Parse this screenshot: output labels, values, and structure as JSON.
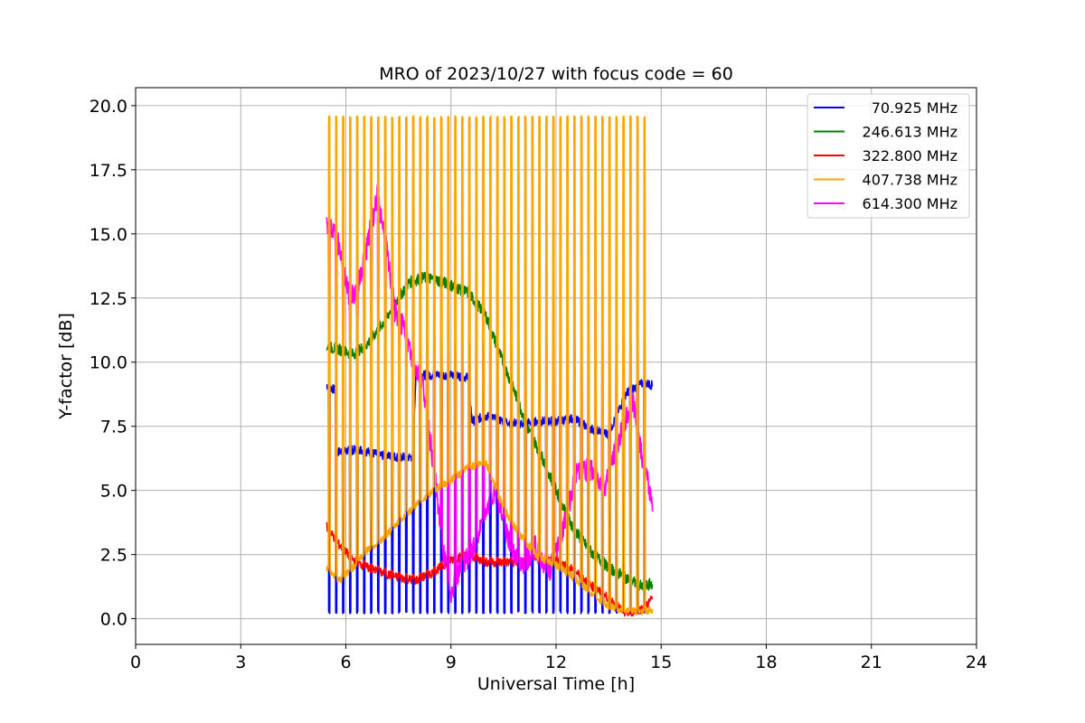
{
  "chart_data": {
    "type": "line",
    "title": "MRO of 2023/10/27 with focus code = 60",
    "xlabel": "Universal Time [h]",
    "ylabel": "Y-factor [dB]",
    "xlim": [
      0,
      24
    ],
    "ylim": [
      -1.0,
      20.7
    ],
    "xticks": [
      0,
      3,
      6,
      9,
      12,
      15,
      18,
      21,
      24
    ],
    "xtick_labels": [
      "0",
      "3",
      "6",
      "9",
      "12",
      "15",
      "18",
      "21",
      "24"
    ],
    "yticks": [
      0,
      2.5,
      5,
      7.5,
      10,
      12.5,
      15,
      17.5,
      20
    ],
    "ytick_labels": [
      "0.0",
      "2.5",
      "5.0",
      "7.5",
      "10.0",
      "12.5",
      "15.0",
      "17.5",
      "20.0"
    ],
    "grid": true,
    "legend_position": "top-right",
    "calibration_pulses": {
      "period_h": 0.2,
      "start_h": 5.5,
      "end_h": 14.6,
      "orange_peak_db": 19.6,
      "magenta_floor_db": 10.7,
      "blue_floor_db": 0.2
    },
    "series": [
      {
        "name": "70.925 MHz",
        "color": "#0000ff",
        "x": [
          5.45,
          5.7,
          5.72,
          6.4,
          6.9,
          7.5,
          7.9,
          8.0,
          8.5,
          9.0,
          9.5,
          9.6,
          10.0,
          10.5,
          11.0,
          11.5,
          12.0,
          12.5,
          13.0,
          13.5,
          14.0,
          14.5,
          14.75
        ],
        "y": [
          9.1,
          8.9,
          6.5,
          6.6,
          6.4,
          6.3,
          6.3,
          9.5,
          9.5,
          9.5,
          9.4,
          7.7,
          7.9,
          7.7,
          7.6,
          7.7,
          7.7,
          7.8,
          7.4,
          7.2,
          8.8,
          9.2,
          9.1
        ]
      },
      {
        "name": "246.613 MHz",
        "color": "#008000",
        "x": [
          5.45,
          5.8,
          6.2,
          6.6,
          7.0,
          7.5,
          7.8,
          8.2,
          8.6,
          9.0,
          9.5,
          10.0,
          10.4,
          10.8,
          11.2,
          11.6,
          12.0,
          12.5,
          13.0,
          13.5,
          14.0,
          14.5,
          14.75
        ],
        "y": [
          10.6,
          10.5,
          10.3,
          10.7,
          11.4,
          12.5,
          13.1,
          13.3,
          13.2,
          13.0,
          12.7,
          11.8,
          10.3,
          8.9,
          7.4,
          6.3,
          5.0,
          3.5,
          2.6,
          2.0,
          1.6,
          1.2,
          1.4
        ]
      },
      {
        "name": "322.800 MHz",
        "color": "#ff0000",
        "x": [
          5.45,
          5.8,
          6.2,
          6.6,
          7.0,
          7.5,
          8.0,
          8.5,
          9.0,
          9.5,
          10.0,
          10.5,
          11.0,
          11.5,
          12.0,
          12.5,
          13.0,
          13.5,
          14.0,
          14.5,
          14.75
        ],
        "y": [
          3.6,
          2.9,
          2.3,
          2.0,
          1.8,
          1.6,
          1.5,
          1.8,
          2.3,
          2.5,
          2.2,
          2.2,
          2.2,
          2.3,
          2.3,
          1.9,
          1.3,
          0.8,
          0.2,
          0.4,
          0.8
        ]
      },
      {
        "name": "407.738 MHz",
        "color": "#ffa500",
        "x": [
          5.45,
          5.8,
          6.2,
          6.6,
          7.0,
          7.5,
          8.0,
          8.5,
          9.0,
          9.5,
          10.0,
          10.5,
          11.0,
          11.5,
          12.0,
          12.5,
          13.0,
          13.5,
          14.0,
          14.5,
          14.75
        ],
        "y": [
          2.0,
          1.5,
          2.0,
          2.7,
          3.0,
          3.8,
          4.4,
          5.0,
          5.4,
          5.9,
          6.1,
          4.3,
          3.2,
          2.4,
          2.1,
          1.6,
          1.0,
          0.5,
          0.3,
          0.3,
          0.3
        ]
      },
      {
        "name": "614.300 MHz",
        "color": "#ff00ff",
        "x": [
          5.45,
          5.7,
          5.9,
          6.1,
          6.3,
          6.6,
          6.9,
          7.1,
          7.4,
          7.7,
          7.9,
          8.2,
          8.5,
          8.8,
          9.0,
          9.3,
          9.6,
          10.0,
          10.3,
          10.6,
          11.0,
          11.4,
          11.8,
          12.2,
          12.6,
          13.0,
          13.4,
          13.8,
          14.2,
          14.5,
          14.75
        ],
        "y": [
          15.5,
          15.0,
          14.0,
          12.5,
          12.8,
          14.5,
          16.5,
          15.0,
          12.0,
          11.2,
          10.0,
          9.2,
          6.0,
          2.5,
          1.0,
          2.2,
          2.5,
          4.2,
          5.0,
          3.2,
          2.0,
          2.8,
          1.8,
          3.5,
          5.8,
          5.8,
          5.2,
          7.0,
          8.5,
          6.0,
          4.5
        ]
      }
    ]
  }
}
